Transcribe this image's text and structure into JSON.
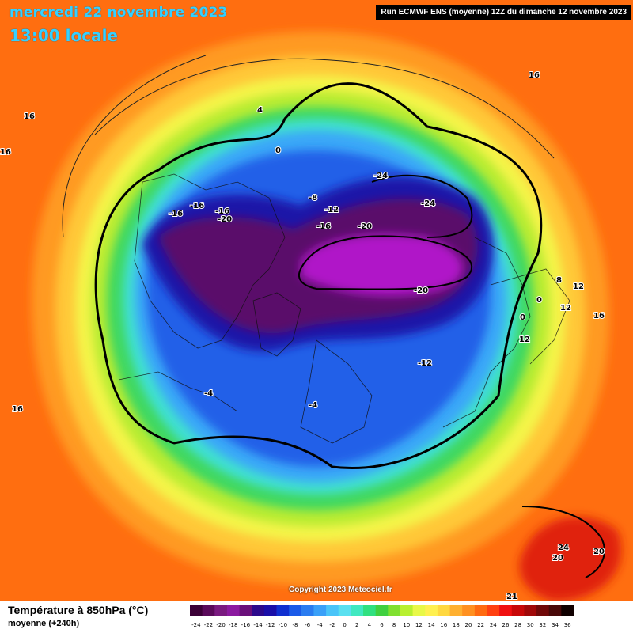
{
  "header": {
    "date": "mercredi 22 novembre 2023",
    "time": "13:00 locale",
    "run": "Run ECMWF ENS (moyenne) 12Z du dimanche 12 novembre 2023"
  },
  "map": {
    "copyright": "Copyright 2023 Meteociel.fr",
    "contour_labels": [
      "16",
      "16",
      "16",
      "16",
      "4",
      "0",
      "-8",
      "-12",
      "-16",
      "-16",
      "-16",
      "-16",
      "-20",
      "-20",
      "-24",
      "-24",
      "-20",
      "-12",
      "-4",
      "-4",
      "8",
      "12",
      "12",
      "12",
      "16",
      "0",
      "0",
      "24",
      "20",
      "20",
      "21"
    ]
  },
  "legend": {
    "title": "Température à 850hPa (°C)",
    "subtitle": "moyenne  (+240h)",
    "ticks": [
      "-24",
      "-22",
      "-20",
      "-18",
      "-16",
      "-14",
      "-12",
      "-10",
      "-8",
      "-6",
      "-4",
      "-2",
      "0",
      "2",
      "4",
      "6",
      "8",
      "10",
      "12",
      "14",
      "16",
      "18",
      "20",
      "22",
      "24",
      "26",
      "28",
      "30",
      "32",
      "34",
      "36"
    ],
    "colors": [
      "#3b0036",
      "#5a0a5a",
      "#7a1a80",
      "#8c1aa0",
      "#6a0f7a",
      "#2c0a8c",
      "#1a0fa8",
      "#1030d0",
      "#1a5ae8",
      "#2a7cf0",
      "#3aa0f8",
      "#4ac4f8",
      "#5ae0f0",
      "#40e8c0",
      "#30e080",
      "#40d040",
      "#80e030",
      "#b8f030",
      "#e8f848",
      "#fff050",
      "#ffd840",
      "#ffb030",
      "#ff9020",
      "#ff6a10",
      "#ff4010",
      "#f01010",
      "#c80808",
      "#a00808",
      "#700808",
      "#480808",
      "#100000"
    ]
  }
}
